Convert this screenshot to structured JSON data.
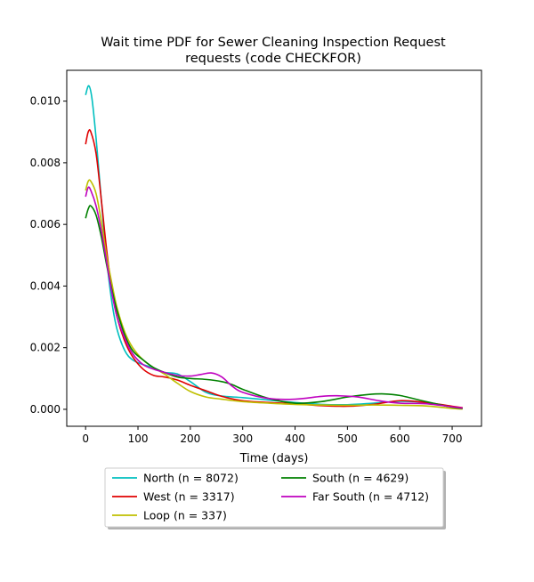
{
  "chart_data": {
    "type": "line",
    "title_lines": [
      "Wait time PDF for Sewer Cleaning Inspection Request",
      "requests (code CHECKFOR)"
    ],
    "xlabel": "Time (days)",
    "ylabel": "",
    "xlim": [
      -36,
      756
    ],
    "ylim": [
      -0.00055,
      0.011
    ],
    "xticks": [
      0,
      100,
      200,
      300,
      400,
      500,
      600,
      700
    ],
    "xtick_labels": [
      "0",
      "100",
      "200",
      "300",
      "400",
      "500",
      "600",
      "700"
    ],
    "yticks": [
      0.0,
      0.002,
      0.004,
      0.006,
      0.008,
      0.01
    ],
    "ytick_labels": [
      "0.000",
      "0.002",
      "0.004",
      "0.006",
      "0.008",
      "0.010"
    ],
    "grid": false,
    "legend_position": "below-center",
    "series": [
      {
        "name": "North (n = 8072)",
        "color": "#00bfbf",
        "x": [
          0,
          6,
          12,
          20,
          30,
          40,
          50,
          60,
          75,
          90,
          110,
          130,
          150,
          175,
          200,
          230,
          260,
          300,
          350,
          400,
          450,
          500,
          550,
          600,
          650,
          700,
          720
        ],
        "y": [
          0.0102,
          0.0105,
          0.0101,
          0.0088,
          0.0068,
          0.0049,
          0.0035,
          0.0026,
          0.0019,
          0.0016,
          0.00145,
          0.00135,
          0.0012,
          0.00115,
          0.0009,
          0.00055,
          0.00043,
          0.00038,
          0.0003,
          0.00022,
          0.00016,
          0.00015,
          0.0002,
          0.00026,
          0.00022,
          8e-05,
          4e-05
        ]
      },
      {
        "name": "West (n = 3317)",
        "color": "#e00000",
        "x": [
          0,
          5,
          10,
          20,
          30,
          40,
          50,
          60,
          75,
          90,
          110,
          130,
          150,
          175,
          200,
          230,
          260,
          300,
          350,
          400,
          450,
          500,
          550,
          600,
          650,
          700,
          720
        ],
        "y": [
          0.0086,
          0.009,
          0.009,
          0.0083,
          0.0068,
          0.0052,
          0.0039,
          0.003,
          0.0022,
          0.0017,
          0.0013,
          0.0011,
          0.00105,
          0.00095,
          0.00078,
          0.0006,
          0.00042,
          0.00028,
          0.00022,
          0.00018,
          0.00012,
          0.0001,
          0.00016,
          0.00028,
          0.00022,
          0.0001,
          5e-05
        ]
      },
      {
        "name": "Loop (n = 337)",
        "color": "#bfbf00",
        "x": [
          0,
          5,
          10,
          20,
          30,
          40,
          50,
          60,
          75,
          90,
          110,
          130,
          150,
          175,
          200,
          230,
          260,
          300,
          350,
          400,
          450,
          500,
          550,
          600,
          650,
          700,
          720
        ],
        "y": [
          0.0071,
          0.0074,
          0.0074,
          0.007,
          0.0061,
          0.005,
          0.0041,
          0.0033,
          0.0025,
          0.002,
          0.0016,
          0.00135,
          0.00115,
          0.00085,
          0.00058,
          0.0004,
          0.00033,
          0.00025,
          0.0002,
          0.00016,
          0.00014,
          0.00013,
          0.00014,
          0.00013,
          0.00011,
          3e-05,
          1e-05
        ]
      },
      {
        "name": "South (n = 4629)",
        "color": "#008000",
        "x": [
          0,
          5,
          10,
          20,
          30,
          40,
          50,
          60,
          75,
          90,
          110,
          130,
          150,
          175,
          200,
          230,
          260,
          280,
          300,
          350,
          400,
          450,
          500,
          540,
          570,
          600,
          650,
          700,
          720
        ],
        "y": [
          0.0062,
          0.0065,
          0.0066,
          0.0063,
          0.0056,
          0.0047,
          0.0039,
          0.0032,
          0.0024,
          0.0019,
          0.0016,
          0.00135,
          0.0012,
          0.00105,
          0.001,
          0.00097,
          0.0009,
          0.0008,
          0.00065,
          0.00035,
          0.0002,
          0.00025,
          0.0004,
          0.00048,
          0.0005,
          0.00045,
          0.00025,
          7e-05,
          3e-05
        ]
      },
      {
        "name": "Far South (n = 4712)",
        "color": "#bf00bf",
        "x": [
          0,
          5,
          10,
          20,
          30,
          40,
          50,
          60,
          75,
          90,
          110,
          130,
          150,
          175,
          200,
          220,
          240,
          260,
          280,
          300,
          350,
          400,
          450,
          480,
          520,
          560,
          600,
          650,
          700,
          720
        ],
        "y": [
          0.0069,
          0.0072,
          0.0071,
          0.0066,
          0.0058,
          0.0048,
          0.0038,
          0.003,
          0.0023,
          0.0018,
          0.00145,
          0.0013,
          0.0012,
          0.0011,
          0.00108,
          0.00113,
          0.00118,
          0.00105,
          0.00075,
          0.00055,
          0.00035,
          0.00033,
          0.00042,
          0.00044,
          0.0004,
          0.00028,
          0.0002,
          0.00018,
          8e-05,
          4e-05
        ]
      }
    ]
  }
}
